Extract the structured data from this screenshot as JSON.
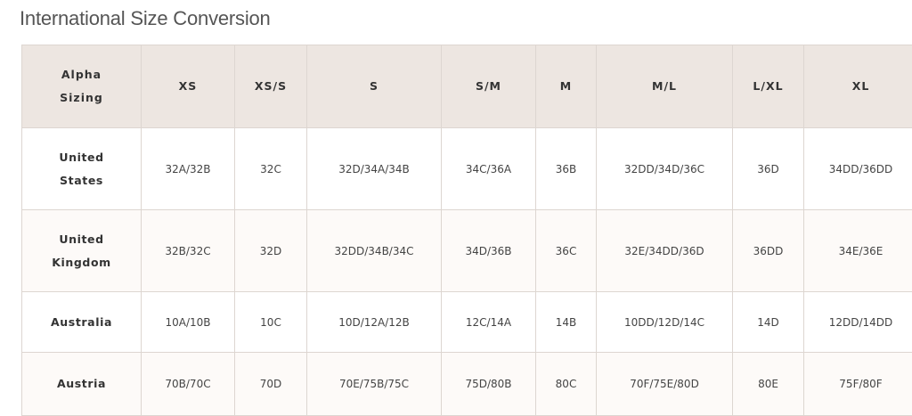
{
  "title": "International Size Conversion",
  "colors": {
    "header_bg": "#ede6e1",
    "border": "#ddd6d1",
    "alt_row_bg": "#fdfaf8"
  },
  "table": {
    "headers": [
      "Alpha Sizing",
      "XS",
      "XS/S",
      "S",
      "S/M",
      "M",
      "M/L",
      "L/XL",
      "XL"
    ],
    "rows": [
      [
        "United States",
        "32A/32B",
        "32C",
        "32D/34A/34B",
        "34C/36A",
        "36B",
        "32DD/34D/36C",
        "36D",
        "34DD/36DD"
      ],
      [
        "United Kingdom",
        "32B/32C",
        "32D",
        "32DD/34B/34C",
        "34D/36B",
        "36C",
        "32E/34DD/36D",
        "36DD",
        "34E/36E"
      ],
      [
        "Australia",
        "10A/10B",
        "10C",
        "10D/12A/12B",
        "12C/14A",
        "14B",
        "10DD/12D/14C",
        "14D",
        "12DD/14DD"
      ],
      [
        "Austria",
        "70B/70C",
        "70D",
        "70E/75B/75C",
        "75D/80B",
        "80C",
        "70F/75E/80D",
        "80E",
        "75F/80F"
      ]
    ]
  }
}
